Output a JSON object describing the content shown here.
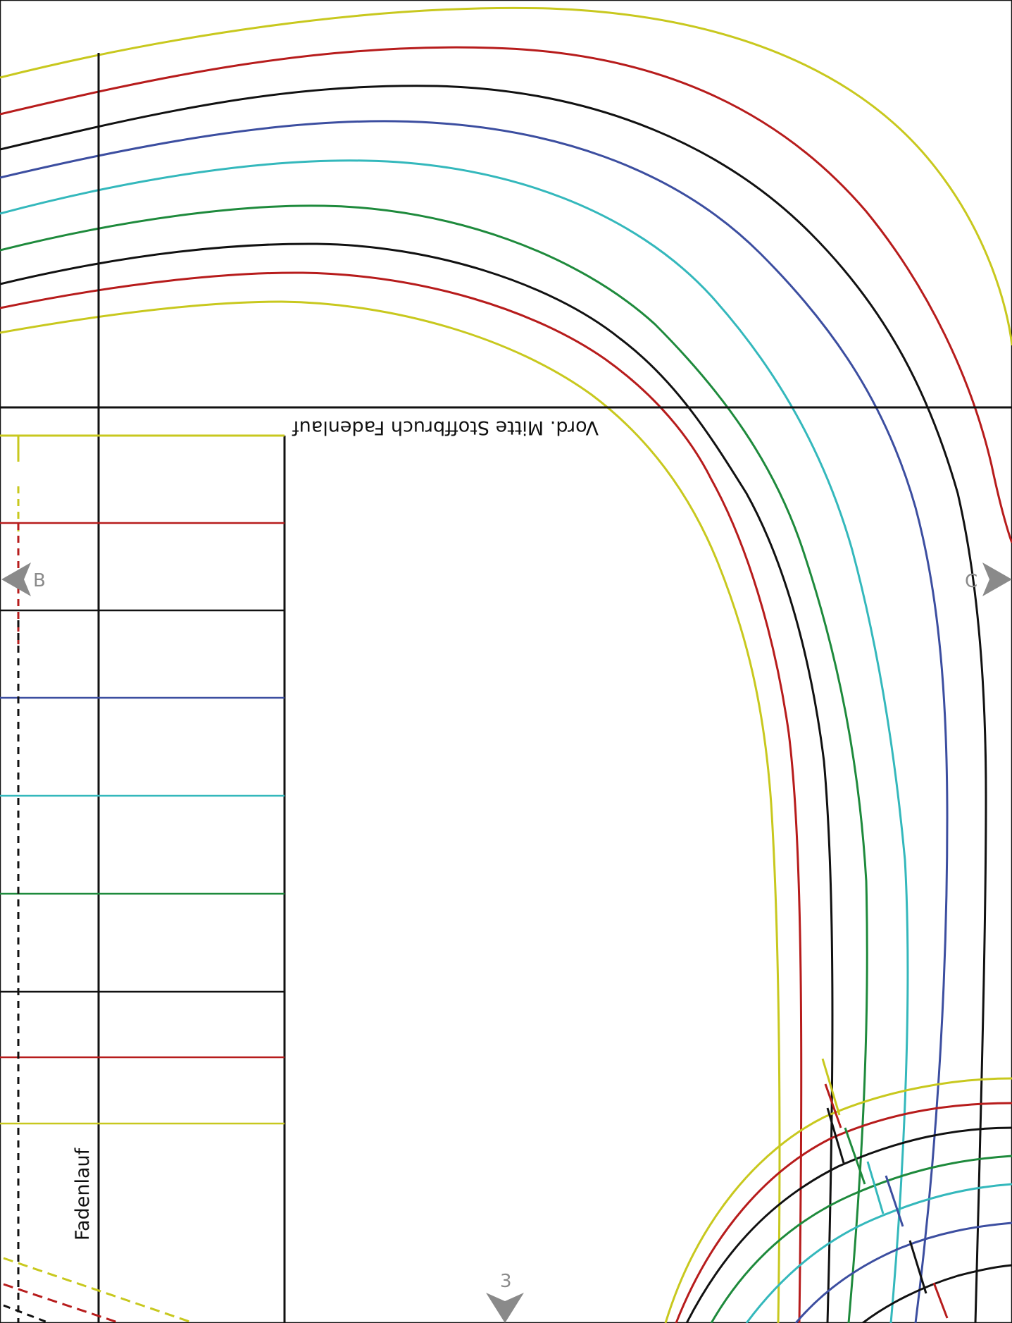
{
  "labels": {
    "grainline_center": "Vord. Mitte Stoffbruch Fadenlauf",
    "grainline": "Fadenlauf",
    "marker_b": "B",
    "marker_c": "C",
    "marker_3": "3"
  },
  "colors": {
    "yellow": "#c8c81e",
    "red": "#b71c1c",
    "black": "#111111",
    "blue": "#3c4ea0",
    "teal": "#34b8bc",
    "green": "#1e8a3c",
    "marker_gray": "#8a8a8a"
  },
  "size_lines": [
    "yellow",
    "red",
    "black",
    "blue",
    "teal",
    "green",
    "black",
    "red",
    "yellow"
  ]
}
